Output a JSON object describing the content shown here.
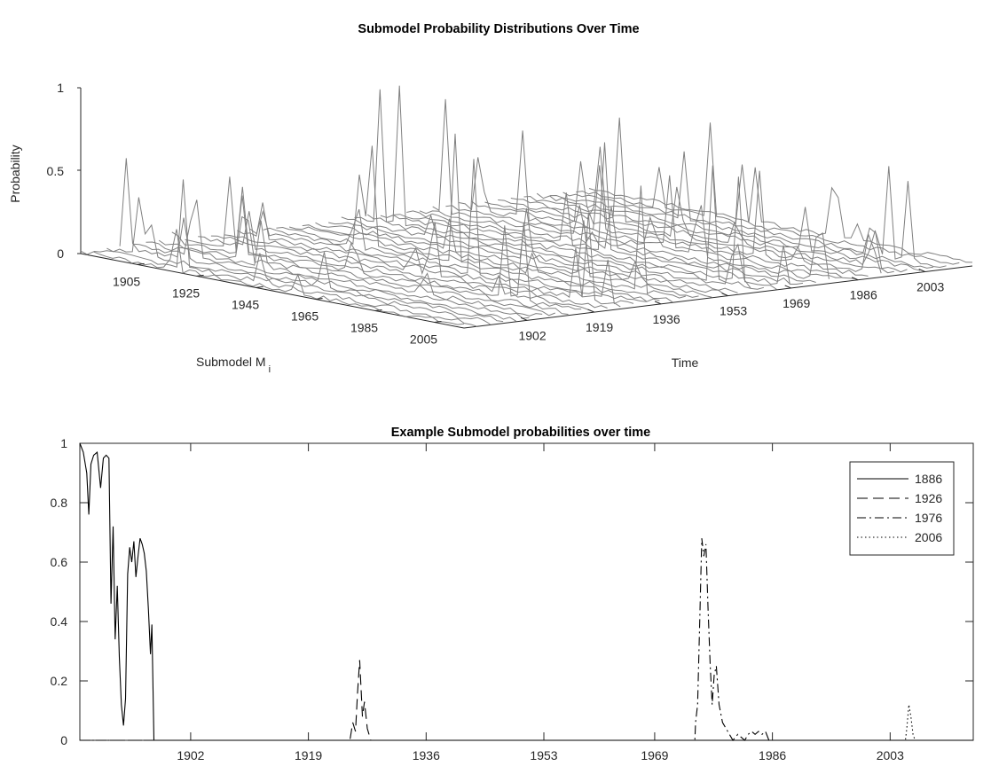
{
  "chart_data": [
    {
      "type": "line",
      "subtype": "3d-waterfall",
      "title": "Submodel Probability Distributions Over Time",
      "zlabel": "Probability",
      "submodel_label_main": "Submodel M",
      "submodel_label_sub": "i",
      "xlabel": "Time",
      "zticks": [
        "0",
        "0.5",
        "1"
      ],
      "submodel_ticks": [
        "1905",
        "1925",
        "1945",
        "1965",
        "1985",
        "2005"
      ],
      "time_ticks": [
        "1902",
        "1919",
        "1936",
        "1953",
        "1969",
        "1986",
        "2003"
      ],
      "zlim": [
        0,
        1
      ],
      "submodel_range": [
        1886,
        2015
      ],
      "time_range": [
        1886,
        2015
      ],
      "line_color": "#808080"
    },
    {
      "type": "line",
      "title": "Example Submodel probabilities over time",
      "xlabel": "",
      "ylabel": "",
      "xlim": [
        1886,
        2015
      ],
      "ylim": [
        0,
        1
      ],
      "xticks": [
        "1902",
        "1919",
        "1936",
        "1953",
        "1969",
        "1986",
        "2003"
      ],
      "yticks": [
        "0",
        "0.2",
        "0.4",
        "0.6",
        "0.8",
        "1"
      ],
      "legend_position": "top-right",
      "series": [
        {
          "name": "1886",
          "dash": "solid",
          "points": [
            [
              1886,
              1.0
            ],
            [
              1886.5,
              0.97
            ],
            [
              1887,
              0.9
            ],
            [
              1887.3,
              0.76
            ],
            [
              1887.6,
              0.93
            ],
            [
              1888,
              0.96
            ],
            [
              1888.5,
              0.97
            ],
            [
              1889,
              0.85
            ],
            [
              1889.4,
              0.95
            ],
            [
              1889.8,
              0.96
            ],
            [
              1890.2,
              0.95
            ],
            [
              1890.5,
              0.46
            ],
            [
              1890.8,
              0.72
            ],
            [
              1891.1,
              0.34
            ],
            [
              1891.4,
              0.52
            ],
            [
              1891.7,
              0.28
            ],
            [
              1892,
              0.12
            ],
            [
              1892.3,
              0.05
            ],
            [
              1892.6,
              0.14
            ],
            [
              1892.9,
              0.56
            ],
            [
              1893.2,
              0.65
            ],
            [
              1893.5,
              0.6
            ],
            [
              1893.8,
              0.67
            ],
            [
              1894.1,
              0.55
            ],
            [
              1894.4,
              0.62
            ],
            [
              1894.7,
              0.68
            ],
            [
              1895,
              0.66
            ],
            [
              1895.3,
              0.63
            ],
            [
              1895.6,
              0.57
            ],
            [
              1895.9,
              0.44
            ],
            [
              1896.2,
              0.29
            ],
            [
              1896.4,
              0.39
            ],
            [
              1896.7,
              0.0
            ],
            [
              1900,
              0.0
            ],
            [
              2015,
              0.0
            ]
          ]
        },
        {
          "name": "1926",
          "dash": "dashed",
          "points": [
            [
              1886,
              0.0
            ],
            [
              1925,
              0.0
            ],
            [
              1925.4,
              0.06
            ],
            [
              1925.8,
              0.03
            ],
            [
              1926.1,
              0.16
            ],
            [
              1926.4,
              0.27
            ],
            [
              1926.8,
              0.08
            ],
            [
              1927.1,
              0.13
            ],
            [
              1927.5,
              0.04
            ],
            [
              1928,
              0.0
            ],
            [
              2015,
              0.0
            ]
          ]
        },
        {
          "name": "1976",
          "dash": "dashdot",
          "points": [
            [
              1886,
              0.0
            ],
            [
              1974.8,
              0.0
            ],
            [
              1974.9,
              0.06
            ],
            [
              1975.2,
              0.12
            ],
            [
              1975.5,
              0.4
            ],
            [
              1975.8,
              0.68
            ],
            [
              1976.1,
              0.62
            ],
            [
              1976.4,
              0.66
            ],
            [
              1976.7,
              0.45
            ],
            [
              1977,
              0.26
            ],
            [
              1977.3,
              0.12
            ],
            [
              1977.6,
              0.22
            ],
            [
              1977.9,
              0.25
            ],
            [
              1978.3,
              0.12
            ],
            [
              1978.8,
              0.06
            ],
            [
              1979.3,
              0.04
            ],
            [
              1979.8,
              0.02
            ],
            [
              1980.3,
              0.0
            ],
            [
              1981,
              0.02
            ],
            [
              1981.5,
              0.01
            ],
            [
              1982,
              0.0
            ],
            [
              1982.5,
              0.02
            ],
            [
              1983,
              0.03
            ],
            [
              1983.5,
              0.02
            ],
            [
              1984,
              0.03
            ],
            [
              1984.5,
              0.02
            ],
            [
              1985,
              0.03
            ],
            [
              1985.5,
              0.0
            ],
            [
              2015,
              0.0
            ]
          ]
        },
        {
          "name": "2006",
          "dash": "dotted",
          "points": [
            [
              1886,
              0.0
            ],
            [
              2005.2,
              0.0
            ],
            [
              2005.4,
              0.04
            ],
            [
              2005.7,
              0.12
            ],
            [
              2006,
              0.08
            ],
            [
              2006.3,
              0.02
            ],
            [
              2006.6,
              0.0
            ],
            [
              2015,
              0.0
            ]
          ]
        }
      ]
    }
  ]
}
